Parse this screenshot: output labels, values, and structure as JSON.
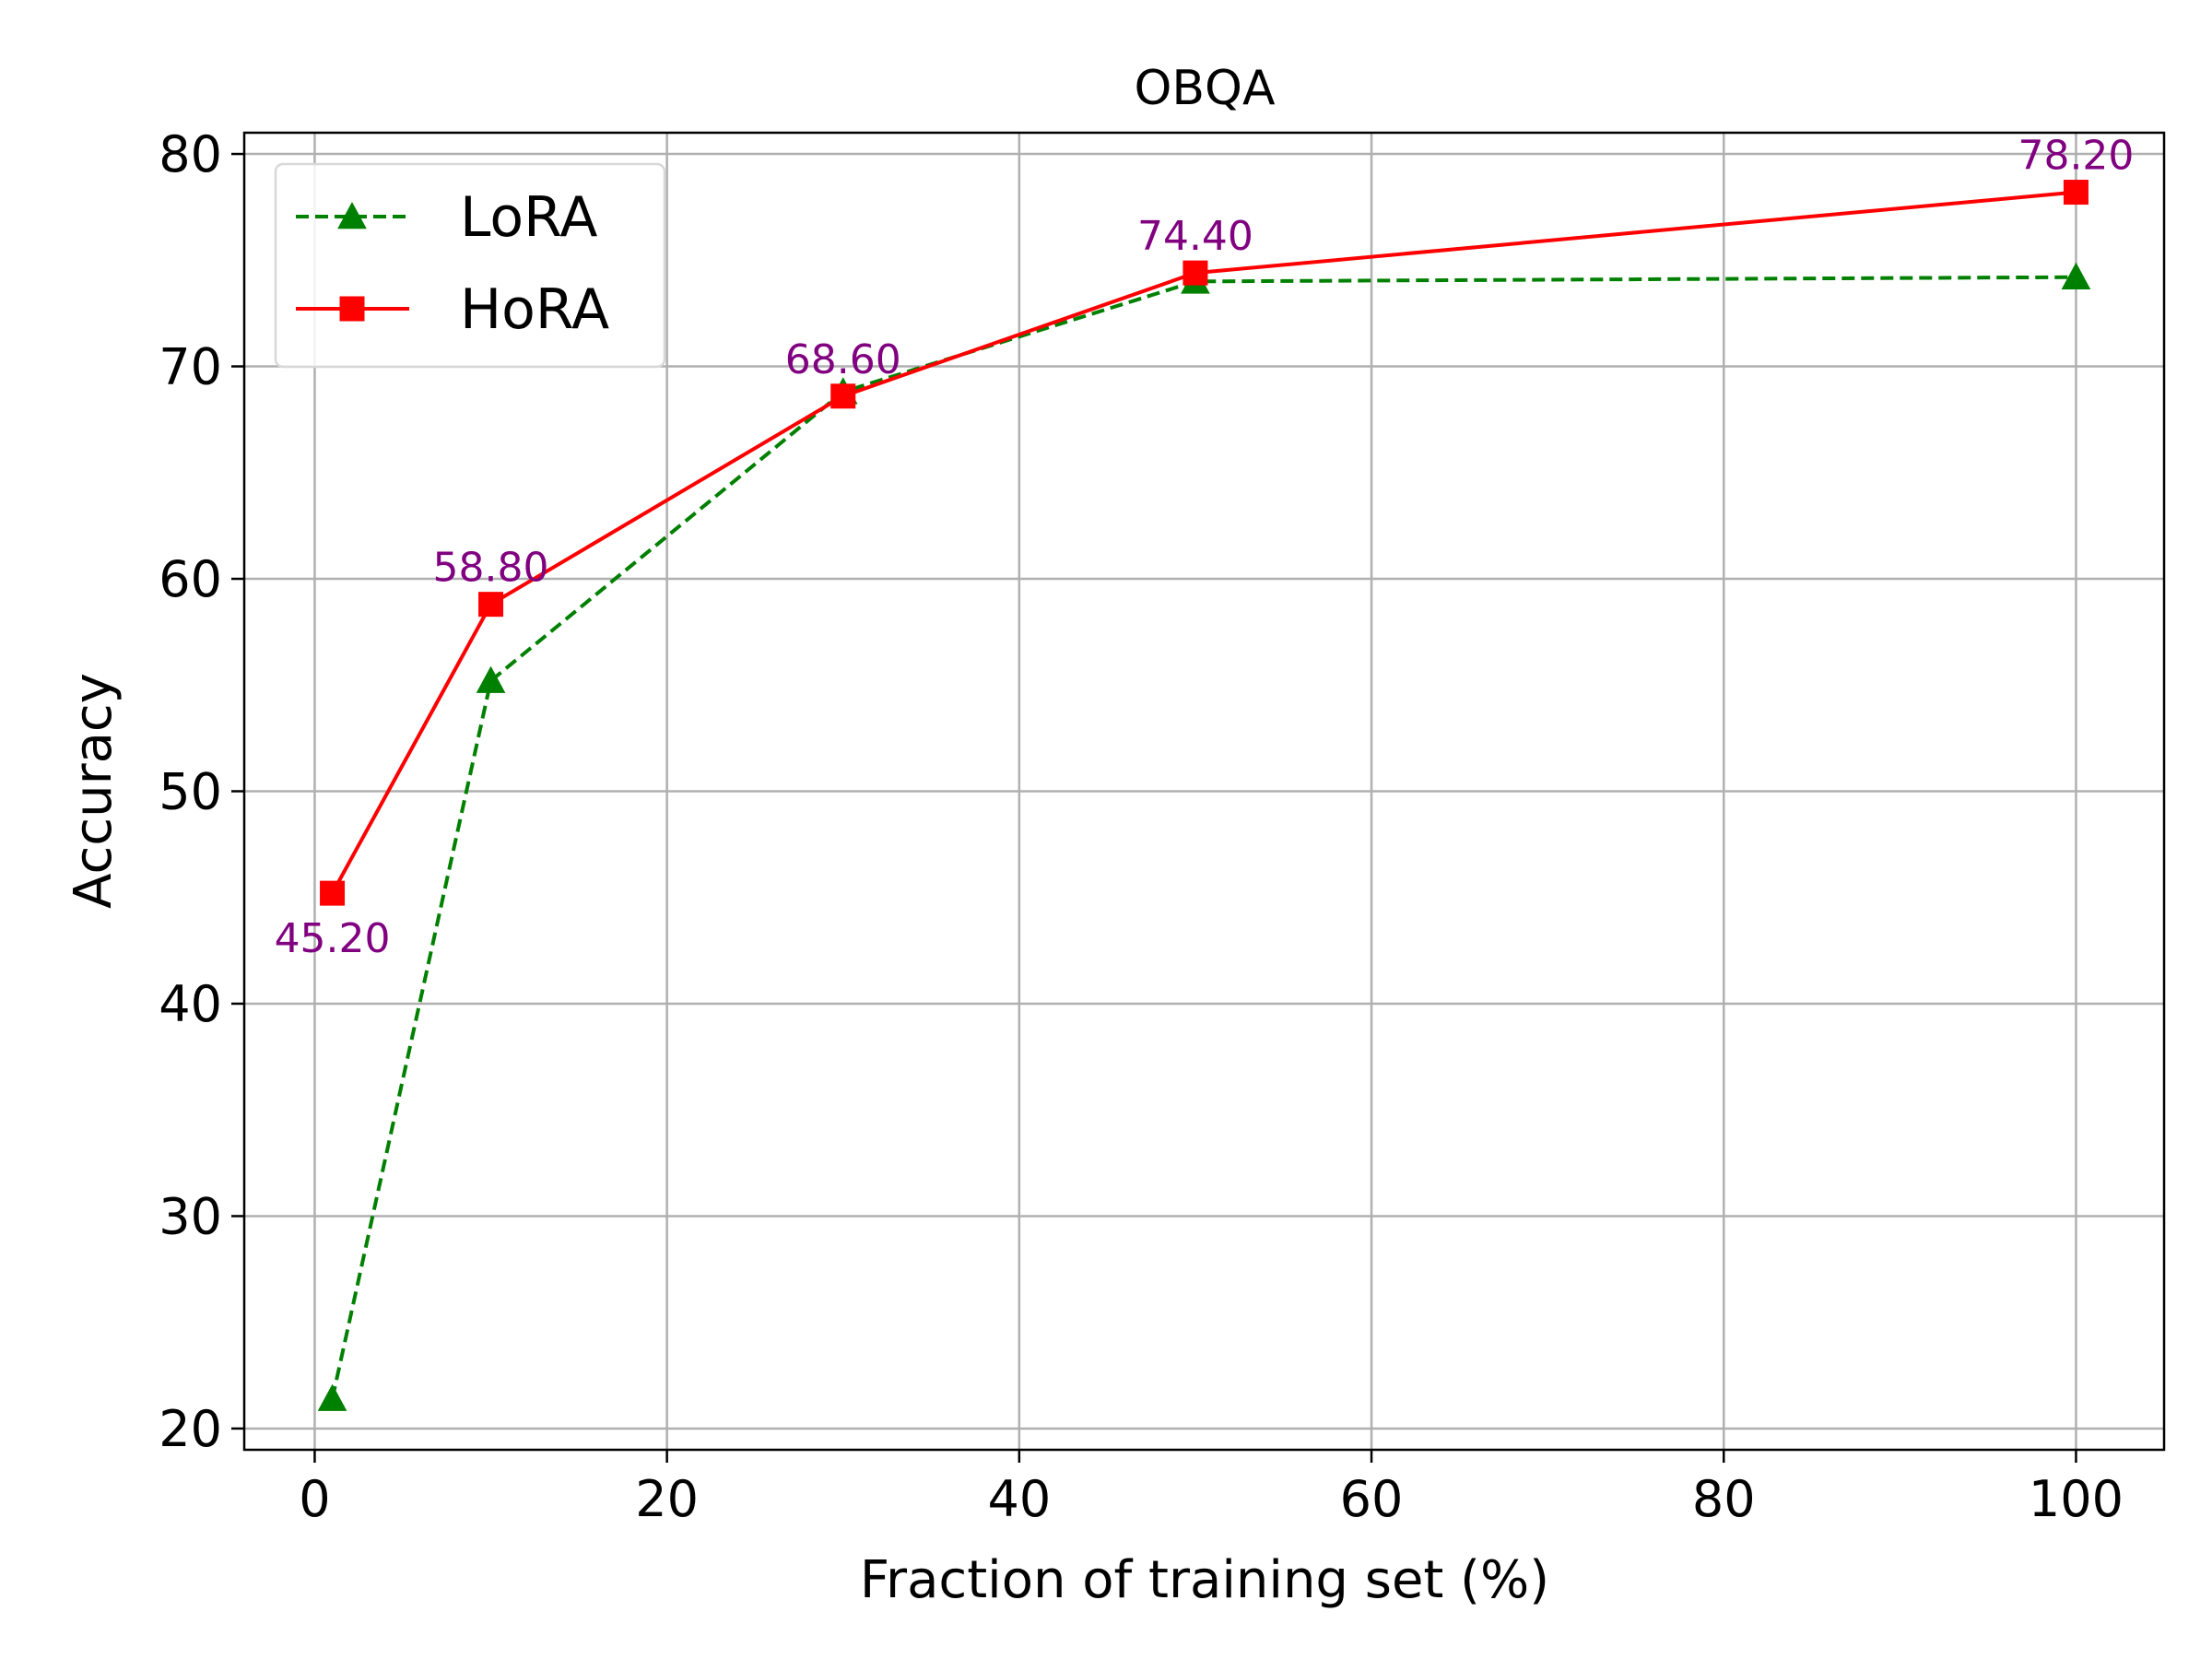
{
  "chart_data": {
    "type": "line",
    "title": "OBQA",
    "xlabel": "Fraction of training set (%)",
    "ylabel": "Accuracy",
    "xlim": [
      -4,
      105
    ],
    "ylim": [
      19,
      81
    ],
    "xticks": [
      0,
      20,
      40,
      60,
      80,
      100
    ],
    "yticks": [
      20,
      30,
      40,
      50,
      60,
      70,
      80
    ],
    "grid": true,
    "legend_position": "top-left",
    "series": [
      {
        "name": "LoRA",
        "color": "#008000",
        "line_style": "dashed",
        "marker": "triangle",
        "x": [
          1,
          10,
          30,
          50,
          100
        ],
        "values": [
          21.4,
          55.2,
          68.8,
          74.0,
          74.2
        ]
      },
      {
        "name": "HoRA",
        "color": "#ff0000",
        "line_style": "solid",
        "marker": "square",
        "x": [
          1,
          10,
          30,
          50,
          100
        ],
        "values": [
          45.2,
          58.8,
          68.6,
          74.4,
          78.2
        ]
      }
    ],
    "annotations": [
      {
        "x": 1,
        "y": 45.2,
        "text": "45.20",
        "placement": "below"
      },
      {
        "x": 10,
        "y": 58.8,
        "text": "58.80",
        "placement": "above"
      },
      {
        "x": 30,
        "y": 68.6,
        "text": "68.60",
        "placement": "above"
      },
      {
        "x": 50,
        "y": 74.4,
        "text": "74.40",
        "placement": "above"
      },
      {
        "x": 100,
        "y": 78.2,
        "text": "78.20",
        "placement": "above"
      }
    ],
    "annotation_color": "#800080"
  }
}
